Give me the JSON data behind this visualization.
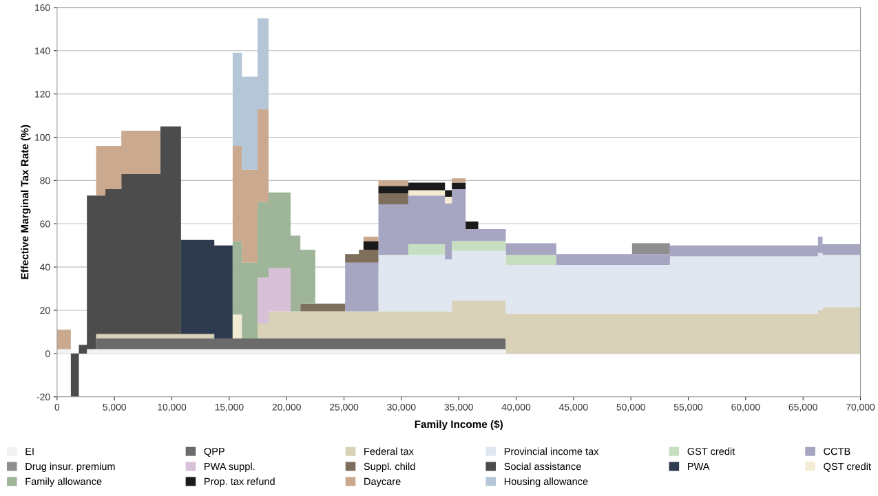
{
  "chart_data": {
    "type": "area",
    "stacked": true,
    "xlabel": "Family Income ($)",
    "ylabel": "Effective Marginal Tax Rate (%)",
    "x": [
      0,
      1200,
      1200,
      1900,
      1900,
      2600,
      2600,
      3400,
      3400,
      4200,
      4200,
      5600,
      5600,
      9000,
      9000,
      10800,
      10800,
      13700,
      13700,
      15300,
      15300,
      16100,
      16100,
      17470,
      17470,
      18430,
      18430,
      20350,
      20350,
      21200,
      21200,
      22500,
      22500,
      25100,
      25100,
      26300,
      26300,
      26700,
      26700,
      28000,
      28000,
      30600,
      30600,
      33800,
      33800,
      34400,
      34400,
      35600,
      35600,
      36700,
      36700,
      39100,
      39100,
      43500,
      43500,
      50100,
      50100,
      53400,
      53400,
      66300,
      66300,
      66700,
      66700,
      70000
    ],
    "series": [
      {
        "name": "EI",
        "color": "#f2f2f2",
        "values": [
          2,
          2,
          null,
          null,
          null,
          null,
          2,
          2,
          2,
          2,
          2,
          2,
          2,
          2,
          2,
          2,
          2,
          2,
          2,
          2,
          2,
          2,
          2,
          2,
          2,
          2,
          2,
          2,
          2,
          2,
          2,
          2,
          2,
          2,
          2,
          2,
          2,
          2,
          2,
          2,
          2,
          2,
          2,
          2,
          2,
          2,
          2,
          2,
          2,
          2,
          2,
          2,
          null,
          null,
          null,
          null,
          null,
          null,
          null,
          null,
          null,
          null,
          null,
          null
        ]
      },
      {
        "name": "QPP",
        "color": "#6b6b6b",
        "values": [
          null,
          null,
          null,
          null,
          null,
          null,
          null,
          null,
          5,
          5,
          5,
          5,
          5,
          5,
          5,
          5,
          5,
          5,
          5,
          5,
          5,
          5,
          5,
          5,
          5,
          5,
          5,
          5,
          5,
          5,
          5,
          5,
          5,
          5,
          5,
          5,
          5,
          5,
          5,
          5,
          5,
          5,
          5,
          5,
          5,
          5,
          5,
          5,
          5,
          5,
          5,
          5,
          null,
          null,
          null,
          null,
          null,
          null,
          null,
          null,
          null,
          null,
          null,
          null
        ]
      },
      {
        "name": "Federal tax",
        "color": "#d9d2b8",
        "values": [
          null,
          null,
          null,
          null,
          null,
          null,
          null,
          null,
          2,
          2,
          2,
          2,
          2,
          2,
          2,
          2,
          2,
          2,
          null,
          null,
          null,
          null,
          null,
          null,
          7,
          7,
          12.5,
          12.5,
          12.5,
          12.5,
          12.5,
          12.5,
          12.5,
          12.5,
          12.5,
          12.5,
          12.5,
          12.5,
          12.5,
          12.5,
          12.5,
          12.5,
          12.5,
          12.5,
          12.5,
          12.5,
          17.5,
          17.5,
          17.5,
          17.5,
          17.5,
          17.5,
          18.5,
          18.5,
          18.5,
          18.5,
          18.5,
          18.5,
          18.5,
          18.5,
          20,
          20,
          21.5,
          21.5
        ]
      },
      {
        "name": "Provincial income tax",
        "color": "#e1e7f0",
        "values": [
          null,
          null,
          null,
          null,
          null,
          null,
          null,
          null,
          null,
          null,
          null,
          null,
          null,
          null,
          null,
          null,
          null,
          null,
          null,
          null,
          null,
          null,
          null,
          null,
          null,
          null,
          null,
          null,
          null,
          null,
          null,
          null,
          null,
          null,
          null,
          null,
          null,
          null,
          null,
          null,
          26,
          26,
          26,
          26,
          24,
          24,
          23,
          23,
          23,
          23,
          23,
          23,
          22.5,
          22.5,
          22.5,
          22.5,
          22.5,
          22.5,
          26.5,
          26.5,
          26.5,
          26.5,
          24,
          24
        ]
      },
      {
        "name": "GST credit",
        "color": "#c5dfc0",
        "values": [
          null,
          null,
          null,
          null,
          null,
          null,
          null,
          null,
          null,
          null,
          null,
          null,
          null,
          null,
          null,
          null,
          null,
          null,
          null,
          null,
          null,
          null,
          null,
          null,
          null,
          null,
          null,
          null,
          null,
          null,
          null,
          null,
          null,
          null,
          null,
          null,
          null,
          null,
          null,
          null,
          null,
          null,
          5,
          5,
          null,
          null,
          4.5,
          4.5,
          4.5,
          4.5,
          4.5,
          4.5,
          4.5,
          4.5,
          null,
          null,
          null,
          null,
          null,
          null,
          null,
          null,
          null,
          null
        ]
      },
      {
        "name": "CCTB",
        "color": "#a6a6c2",
        "values": [
          null,
          null,
          null,
          null,
          null,
          null,
          null,
          null,
          null,
          null,
          null,
          null,
          null,
          null,
          null,
          null,
          null,
          null,
          null,
          null,
          null,
          null,
          null,
          null,
          null,
          null,
          null,
          null,
          null,
          null,
          null,
          null,
          null,
          null,
          22.5,
          22.5,
          22.5,
          22.5,
          22.5,
          22.5,
          23.5,
          23.5,
          22.5,
          22.5,
          26,
          26,
          24,
          24,
          5.5,
          5.5,
          5.5,
          5.5,
          5.5,
          5.5,
          5,
          5,
          5,
          5,
          5,
          5,
          7.5,
          7.5,
          5,
          5
        ]
      },
      {
        "name": "Drug insur. premium",
        "color": "#8f8f8f",
        "values": [
          null,
          null,
          null,
          null,
          null,
          null,
          null,
          null,
          null,
          null,
          null,
          null,
          null,
          null,
          null,
          null,
          null,
          null,
          null,
          null,
          null,
          null,
          null,
          null,
          null,
          null,
          null,
          null,
          null,
          null,
          null,
          null,
          null,
          null,
          null,
          null,
          null,
          null,
          null,
          null,
          null,
          null,
          null,
          null,
          null,
          null,
          null,
          null,
          null,
          null,
          null,
          null,
          null,
          null,
          null,
          null,
          5,
          5,
          null,
          null,
          null,
          null,
          null,
          null
        ]
      },
      {
        "name": "PWA suppl.",
        "color": "#d8c0d8",
        "values": [
          null,
          null,
          null,
          null,
          null,
          null,
          null,
          null,
          null,
          null,
          null,
          null,
          null,
          null,
          null,
          null,
          null,
          null,
          null,
          null,
          null,
          null,
          null,
          null,
          21,
          21,
          20,
          20,
          null,
          null,
          null,
          null,
          null,
          null,
          null,
          null,
          null,
          null,
          null,
          null,
          null,
          null,
          null,
          null,
          null,
          null,
          null,
          null,
          null,
          null,
          null,
          null,
          null,
          null,
          null,
          null,
          null,
          null,
          null,
          null,
          null,
          null,
          null,
          null
        ]
      },
      {
        "name": "Suppl. child",
        "color": "#7e6f5c",
        "values": [
          null,
          null,
          null,
          null,
          null,
          null,
          null,
          null,
          null,
          null,
          null,
          null,
          null,
          null,
          null,
          null,
          null,
          null,
          null,
          null,
          null,
          null,
          null,
          null,
          null,
          null,
          null,
          null,
          null,
          null,
          3.5,
          3.5,
          3.5,
          3.5,
          4,
          4,
          6,
          6,
          6,
          6,
          5,
          5,
          null,
          null,
          null,
          null,
          null,
          null,
          null,
          null,
          null,
          null,
          null,
          null,
          null,
          null,
          null,
          null,
          null,
          null,
          null,
          null,
          null,
          null
        ]
      },
      {
        "name": "Social assistance",
        "color": "#4c4c4c",
        "values": [
          null,
          null,
          -20,
          -20,
          4,
          4,
          71,
          71,
          64,
          64,
          67,
          67,
          74,
          74,
          96,
          96,
          null,
          null,
          null,
          null,
          null,
          null,
          null,
          null,
          null,
          null,
          null,
          null,
          null,
          null,
          null,
          null,
          null,
          null,
          null,
          null,
          null,
          null,
          null,
          null,
          null,
          null,
          null,
          null,
          null,
          null,
          null,
          null,
          null,
          null,
          null,
          null,
          null,
          null,
          null,
          null,
          null,
          null,
          null,
          null,
          null,
          null,
          null,
          null
        ]
      },
      {
        "name": "PWA",
        "color": "#2e3b4e",
        "values": [
          null,
          null,
          null,
          null,
          null,
          null,
          null,
          null,
          null,
          null,
          null,
          null,
          null,
          null,
          null,
          null,
          43.5,
          43.5,
          43,
          43,
          null,
          null,
          null,
          null,
          null,
          null,
          null,
          null,
          null,
          null,
          null,
          null,
          null,
          null,
          null,
          null,
          null,
          null,
          null,
          null,
          null,
          null,
          null,
          null,
          null,
          null,
          null,
          null,
          null,
          null,
          null,
          null,
          null,
          null,
          null,
          null,
          null,
          null,
          null,
          null,
          null,
          null,
          null,
          null
        ]
      },
      {
        "name": "QST credit",
        "color": "#f3ecd2",
        "values": [
          null,
          null,
          null,
          null,
          null,
          null,
          null,
          null,
          null,
          null,
          null,
          null,
          null,
          null,
          null,
          null,
          null,
          null,
          null,
          null,
          11,
          11,
          null,
          null,
          null,
          null,
          null,
          null,
          null,
          null,
          null,
          null,
          null,
          null,
          null,
          null,
          null,
          null,
          null,
          null,
          null,
          null,
          2.5,
          2.5,
          3,
          3,
          null,
          null,
          null,
          null,
          null,
          null,
          null,
          null,
          null,
          null,
          null,
          null,
          null,
          null,
          null,
          null,
          null,
          null
        ]
      },
      {
        "name": "Family allowance",
        "color": "#9fb59a",
        "values": [
          null,
          null,
          null,
          null,
          null,
          null,
          null,
          null,
          null,
          null,
          null,
          null,
          null,
          null,
          null,
          null,
          null,
          null,
          null,
          null,
          34,
          34,
          35,
          35,
          35,
          35,
          35,
          35,
          35,
          35,
          25,
          25,
          null,
          null,
          null,
          null,
          null,
          null,
          null,
          null,
          null,
          null,
          null,
          null,
          null,
          null,
          null,
          null,
          null,
          null,
          null,
          null,
          null,
          null,
          null,
          null,
          null,
          null,
          null,
          null,
          null,
          null,
          null,
          null
        ]
      },
      {
        "name": "Prop. tax refund",
        "color": "#1a1a1a",
        "values": [
          null,
          null,
          null,
          null,
          null,
          null,
          null,
          null,
          null,
          null,
          null,
          null,
          null,
          null,
          null,
          null,
          null,
          null,
          null,
          null,
          null,
          null,
          null,
          null,
          null,
          null,
          null,
          null,
          null,
          null,
          null,
          null,
          null,
          null,
          null,
          null,
          null,
          null,
          4,
          4,
          3.5,
          3.5,
          3.5,
          3.5,
          3,
          3,
          3,
          3,
          3.5,
          3.5,
          null,
          null,
          null,
          null,
          null,
          null,
          null,
          null,
          null,
          null,
          null,
          null,
          null,
          null
        ]
      },
      {
        "name": "Daycare",
        "color": "#caa98e",
        "values": [
          9,
          9,
          null,
          null,
          null,
          null,
          null,
          null,
          23,
          23,
          20,
          20,
          20,
          20,
          null,
          null,
          null,
          null,
          null,
          null,
          44,
          44,
          43,
          43,
          43,
          43,
          null,
          null,
          null,
          null,
          null,
          null,
          null,
          null,
          null,
          null,
          null,
          null,
          2,
          2,
          2.5,
          2.5,
          null,
          null,
          null,
          null,
          2,
          2,
          null,
          null,
          null,
          null,
          null,
          null,
          null,
          null,
          null,
          null,
          null,
          null,
          null,
          null,
          null,
          null
        ]
      },
      {
        "name": "Housing allowance",
        "color": "#b4c6d8",
        "values": [
          null,
          null,
          null,
          null,
          null,
          null,
          null,
          null,
          null,
          null,
          null,
          null,
          null,
          null,
          null,
          null,
          null,
          null,
          null,
          null,
          43,
          43,
          43,
          43,
          42,
          42,
          null,
          null,
          null,
          null,
          null,
          null,
          null,
          null,
          null,
          null,
          null,
          null,
          null,
          null,
          null,
          null,
          null,
          null,
          null,
          null,
          null,
          null,
          null,
          null,
          null,
          null,
          null,
          null,
          null,
          null,
          null,
          null,
          null,
          null,
          null,
          null,
          null,
          null
        ]
      }
    ],
    "xlim": [
      0,
      70000
    ],
    "ylim": [
      -20,
      160
    ],
    "xticks": [
      0,
      {
        "value": 5000,
        "label": "5,000"
      },
      {
        "value": 10000,
        "label": "10,000"
      },
      {
        "value": 15000,
        "label": "15,000"
      },
      {
        "value": 20000,
        "label": "20,000"
      },
      {
        "value": 25000,
        "label": "25,000"
      },
      {
        "value": 30000,
        "label": "30,000"
      },
      {
        "value": 35000,
        "label": "35,000"
      },
      {
        "value": 40000,
        "label": "40,000"
      },
      {
        "value": 45000,
        "label": "45,000"
      },
      {
        "value": 50000,
        "label": "50,000"
      },
      {
        "value": 55000,
        "label": "55,000"
      },
      {
        "value": 60000,
        "label": "60,000"
      },
      {
        "value": 65000,
        "label": "65,000"
      },
      {
        "value": 70000,
        "label": "70,000"
      }
    ],
    "yticks": [
      -20,
      0,
      20,
      40,
      60,
      80,
      100,
      120,
      140,
      160
    ],
    "grid": "y",
    "legend": "bottom"
  }
}
